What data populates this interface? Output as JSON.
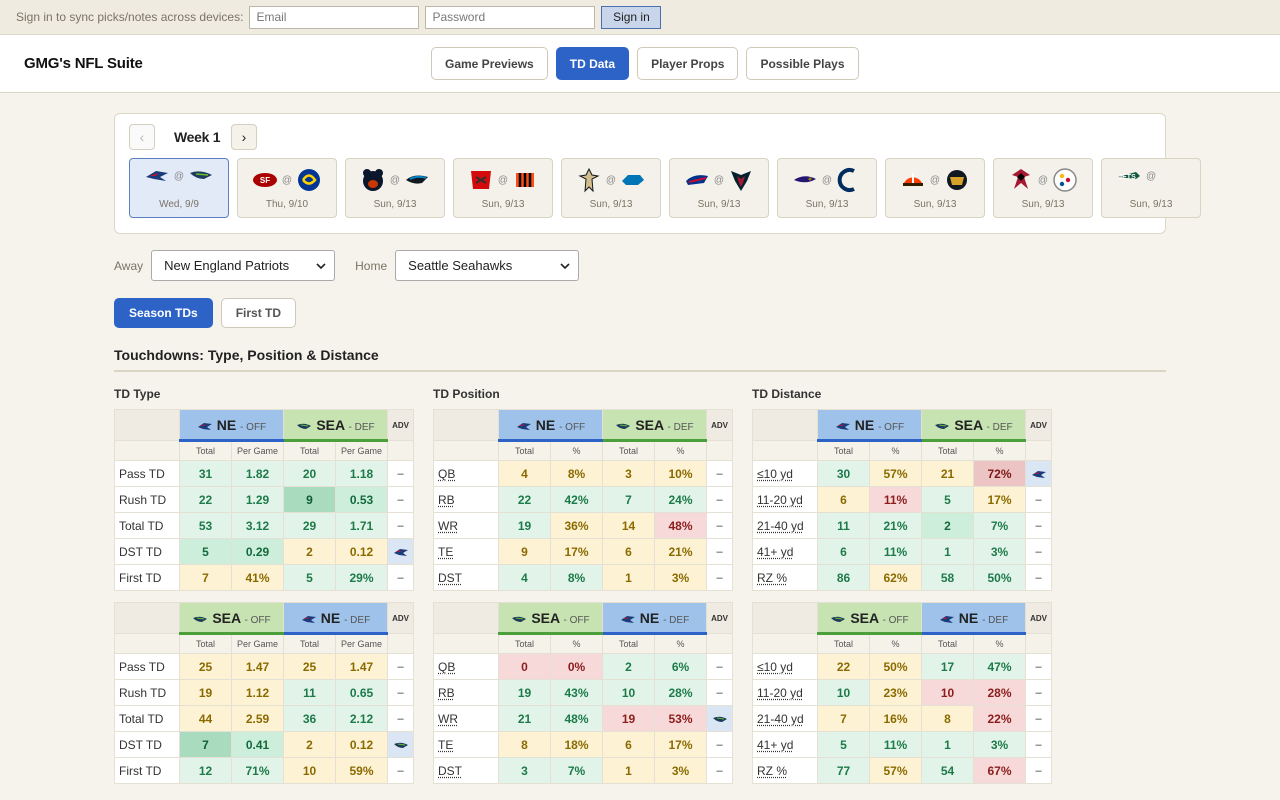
{
  "topbar": {
    "message": "Sign in to sync picks/notes across devices:",
    "email_placeholder": "Email",
    "password_placeholder": "Password",
    "signin_label": "Sign in"
  },
  "header": {
    "brand": "GMG's NFL Suite",
    "tabs": [
      {
        "label": "Game Previews"
      },
      {
        "label": "TD Data"
      },
      {
        "label": "Player Props"
      },
      {
        "label": "Possible Plays"
      }
    ],
    "active_tab": "TD Data"
  },
  "week": {
    "prev": "‹",
    "next": "›",
    "label": "Week 1",
    "games": [
      {
        "date": "Wed, 9/9"
      },
      {
        "date": "Thu, 9/10"
      },
      {
        "date": "Sun, 9/13"
      },
      {
        "date": "Sun, 9/13"
      },
      {
        "date": "Sun, 9/13"
      },
      {
        "date": "Sun, 9/13"
      },
      {
        "date": "Sun, 9/13"
      },
      {
        "date": "Sun, 9/13"
      },
      {
        "date": "Sun, 9/13"
      },
      {
        "date": "Sun, 9/13"
      }
    ]
  },
  "selectors": {
    "away_label": "Away",
    "away_value": "New England Patriots",
    "home_label": "Home",
    "home_value": "Seattle Seahawks"
  },
  "subtabs": {
    "season": "Season TDs",
    "first": "First TD"
  },
  "section_title": "Touchdowns: Type, Position & Distance",
  "col_titles": {
    "type": "TD Type",
    "position": "TD Position",
    "distance": "TD Distance"
  },
  "headers": {
    "ne": "NE",
    "sea": "SEA",
    "off": "- OFF",
    "def": "- DEF",
    "adv": "ADV",
    "total": "Total",
    "per_game": "Per Game",
    "pct": "%",
    "dash": "–"
  },
  "type1": {
    "rows": [
      {
        "label": "Pass TD",
        "a": "31",
        "b": "1.82",
        "c": "20",
        "d": "1.18"
      },
      {
        "label": "Rush TD",
        "a": "22",
        "b": "1.29",
        "c": "9",
        "d": "0.53"
      },
      {
        "label": "Total TD",
        "a": "53",
        "b": "3.12",
        "c": "29",
        "d": "1.71"
      },
      {
        "label": "DST TD",
        "a": "5",
        "b": "0.29",
        "c": "2",
        "d": "0.12"
      },
      {
        "label": "First TD",
        "a": "7",
        "b": "41%",
        "c": "5",
        "d": "29%"
      }
    ]
  },
  "pos1": {
    "rows": [
      {
        "label": "QB",
        "a": "4",
        "b": "8%",
        "c": "3",
        "d": "10%"
      },
      {
        "label": "RB",
        "a": "22",
        "b": "42%",
        "c": "7",
        "d": "24%"
      },
      {
        "label": "WR",
        "a": "19",
        "b": "36%",
        "c": "14",
        "d": "48%"
      },
      {
        "label": "TE",
        "a": "9",
        "b": "17%",
        "c": "6",
        "d": "21%"
      },
      {
        "label": "DST",
        "a": "4",
        "b": "8%",
        "c": "1",
        "d": "3%"
      }
    ]
  },
  "dist1": {
    "rows": [
      {
        "label": "≤10 yd",
        "a": "30",
        "b": "57%",
        "c": "21",
        "d": "72%"
      },
      {
        "label": "11-20 yd",
        "a": "6",
        "b": "11%",
        "c": "5",
        "d": "17%"
      },
      {
        "label": "21-40 yd",
        "a": "11",
        "b": "21%",
        "c": "2",
        "d": "7%"
      },
      {
        "label": "41+ yd",
        "a": "6",
        "b": "11%",
        "c": "1",
        "d": "3%"
      },
      {
        "label": "RZ %",
        "a": "86",
        "b": "62%",
        "c": "58",
        "d": "50%"
      }
    ]
  },
  "type2": {
    "rows": [
      {
        "label": "Pass TD",
        "a": "25",
        "b": "1.47",
        "c": "25",
        "d": "1.47"
      },
      {
        "label": "Rush TD",
        "a": "19",
        "b": "1.12",
        "c": "11",
        "d": "0.65"
      },
      {
        "label": "Total TD",
        "a": "44",
        "b": "2.59",
        "c": "36",
        "d": "2.12"
      },
      {
        "label": "DST TD",
        "a": "7",
        "b": "0.41",
        "c": "2",
        "d": "0.12"
      },
      {
        "label": "First TD",
        "a": "12",
        "b": "71%",
        "c": "10",
        "d": "59%"
      }
    ]
  },
  "pos2": {
    "rows": [
      {
        "label": "QB",
        "a": "0",
        "b": "0%",
        "c": "2",
        "d": "6%"
      },
      {
        "label": "RB",
        "a": "19",
        "b": "43%",
        "c": "10",
        "d": "28%"
      },
      {
        "label": "WR",
        "a": "21",
        "b": "48%",
        "c": "19",
        "d": "53%"
      },
      {
        "label": "TE",
        "a": "8",
        "b": "18%",
        "c": "6",
        "d": "17%"
      },
      {
        "label": "DST",
        "a": "3",
        "b": "7%",
        "c": "1",
        "d": "3%"
      }
    ]
  },
  "dist2": {
    "rows": [
      {
        "label": "≤10 yd",
        "a": "22",
        "b": "50%",
        "c": "17",
        "d": "47%"
      },
      {
        "label": "11-20 yd",
        "a": "10",
        "b": "23%",
        "c": "10",
        "d": "28%"
      },
      {
        "label": "21-40 yd",
        "a": "7",
        "b": "16%",
        "c": "8",
        "d": "22%"
      },
      {
        "label": "41+ yd",
        "a": "5",
        "b": "11%",
        "c": "1",
        "d": "3%"
      },
      {
        "label": "RZ %",
        "a": "77",
        "b": "57%",
        "c": "54",
        "d": "67%"
      }
    ]
  },
  "colors": {
    "accent": "#2d63c7",
    "ne_header": "#9fc2ea",
    "sea_header": "#c7e3b2",
    "positive": "#a9dcbf",
    "neutral": "#fdf3d4",
    "negative": "#f7d9d9"
  }
}
